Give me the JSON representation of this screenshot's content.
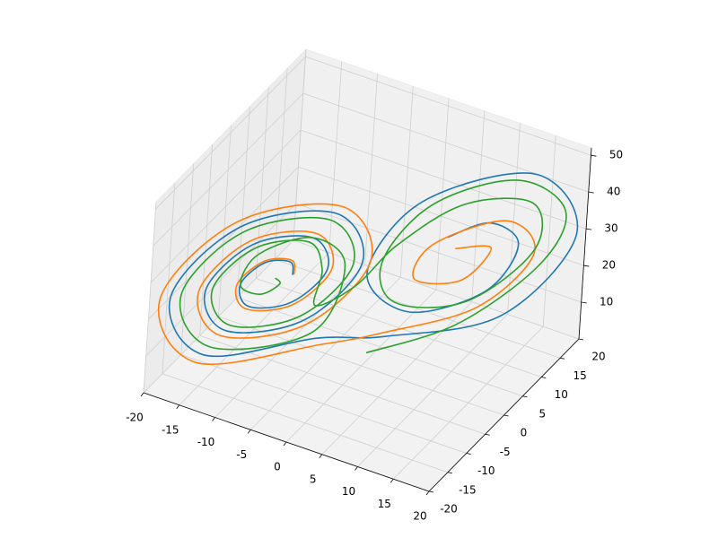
{
  "chart_data": {
    "type": "line3d",
    "xlim": [
      -20,
      20
    ],
    "ylim": [
      -20,
      20
    ],
    "zlim": [
      0,
      52
    ],
    "xticks": [
      -20,
      -15,
      -10,
      -5,
      0,
      5,
      10,
      15,
      20
    ],
    "yticks": [
      -20,
      -15,
      -10,
      -5,
      0,
      5,
      10,
      15,
      20
    ],
    "zticks": [
      10,
      20,
      30,
      40,
      50
    ],
    "grid": true,
    "series": [
      {
        "color": "#1f77b4",
        "x": [
          -7,
          -7.5,
          -9.8,
          -11.5,
          -10.3,
          -6.5,
          -4,
          -6,
          -11.3,
          -14.5,
          -11.8,
          -5,
          -1,
          -4.5,
          -12.8,
          -17.5,
          -13.3,
          -3.5,
          3.5,
          13.5,
          18.5,
          13.5,
          4,
          0.5,
          5,
          11.5,
          13.5,
          10.5,
          7
        ],
        "y": [
          -6.7,
          -6.6,
          -9.1,
          -12.1,
          -11.8,
          -7.5,
          -3.1,
          -3.8,
          -9.9,
          -15.7,
          -14.7,
          -6.7,
          0.5,
          -0.9,
          -10.7,
          -19.3,
          -17.5,
          -6,
          -1,
          11,
          20.5,
          18,
          6.2,
          -1.1,
          1.9,
          10,
          14.5,
          12.3,
          7.7
        ],
        "z": [
          27,
          30.1,
          30.9,
          27,
          21.5,
          20.8,
          27,
          34.8,
          35.6,
          27,
          16.9,
          16.1,
          27,
          39.5,
          40.2,
          27,
          12.2,
          11.4,
          11.4,
          11.4,
          27,
          42.6,
          41,
          27,
          16.1,
          17.6,
          27,
          33.2,
          31.7
        ]
      },
      {
        "color": "#ff7f0e",
        "x": [
          -6.9,
          -7.4,
          -9.9,
          -11.8,
          -10.5,
          -6.3,
          -3.6,
          -5.8,
          -11.6,
          -15.1,
          -12.1,
          -4.7,
          -0.3,
          -4.1,
          -13.2,
          -18.4,
          -13.8,
          -3,
          3,
          11,
          15,
          12,
          6,
          5,
          9,
          11,
          8
        ],
        "y": [
          -6.5,
          -6.4,
          -9.2,
          -12.5,
          -12.1,
          -7.4,
          -2.6,
          -3.3,
          -10,
          -16.4,
          -15.3,
          -6.5,
          1.4,
          -0.1,
          -10.9,
          -20.4,
          -18.4,
          -5.8,
          -1,
          9,
          16,
          14,
          6,
          3,
          8,
          12,
          8
        ],
        "z": [
          27,
          30.4,
          31.3,
          27,
          21,
          20.2,
          27,
          35.6,
          36.5,
          27,
          15.9,
          15,
          27,
          40.8,
          41.5,
          27,
          10.7,
          9.8,
          12,
          14,
          24,
          33,
          31,
          24,
          21,
          27,
          29
        ]
      },
      {
        "color": "#2ca02c",
        "x": [
          2,
          10,
          16,
          17,
          12,
          5,
          2,
          4,
          10,
          15,
          14,
          8,
          3,
          0,
          -4,
          -4.5,
          -6.3,
          -11,
          -13.9,
          -11.5,
          -5.4,
          -1.8,
          -4.9,
          -12.4,
          -16.6,
          -12.8,
          -4,
          -2.5,
          -6,
          -10.5,
          -11.5,
          -9.5,
          -8,
          -8.5
        ],
        "y": [
          -3,
          6,
          16,
          20,
          16,
          7,
          0,
          0,
          8,
          16,
          17,
          10,
          2,
          -3,
          -6,
          -3.6,
          -4.3,
          -9.8,
          -15,
          -14.1,
          -6.9,
          -0.4,
          -1.7,
          -10.5,
          -18.2,
          -16.6,
          -6.3,
          -1.3,
          -3.8,
          -9.5,
          -12.1,
          -10.4,
          -8.2,
          -8.5
        ],
        "z": [
          8,
          12,
          22,
          33,
          42,
          40,
          30,
          20,
          16,
          25,
          36,
          39,
          33,
          25,
          20,
          27,
          34,
          34.7,
          27,
          17.9,
          17.2,
          27,
          38.3,
          38.9,
          27,
          13.7,
          13,
          27,
          34.8,
          33.2,
          27,
          23.9,
          25.4,
          27
        ]
      }
    ]
  }
}
